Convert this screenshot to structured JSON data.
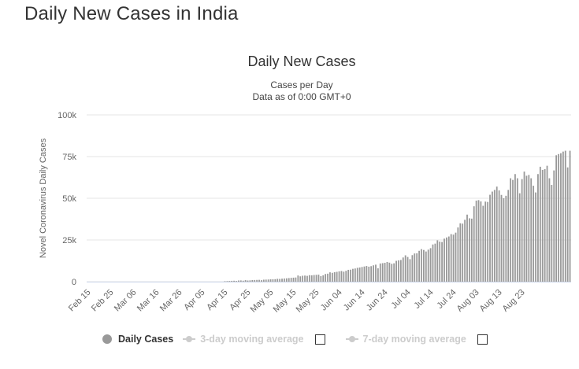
{
  "page": {
    "title": "Daily New Cases in India"
  },
  "chart_data": {
    "type": "bar",
    "title": "Daily New Cases",
    "subtitle": [
      "Cases per Day",
      "Data as of 0:00 GMT+0"
    ],
    "ylabel": "Novel Coronavirus Daily Cases",
    "xlabel": "",
    "ylim": [
      0,
      100000
    ],
    "yticks": [
      0,
      25000,
      50000,
      75000,
      100000
    ],
    "ytick_labels": [
      "0",
      "25k",
      "50k",
      "75k",
      "100k"
    ],
    "xtick_labels": [
      "Feb 15",
      "Feb 25",
      "Mar 06",
      "Mar 16",
      "Mar 26",
      "Apr 05",
      "Apr 15",
      "Apr 25",
      "May 05",
      "May 15",
      "May 25",
      "Jun 04",
      "Jun 14",
      "Jun 24",
      "Jul 04",
      "Jul 14",
      "Jul 24",
      "Aug 03",
      "Aug 13",
      "Aug 23"
    ],
    "grid": true,
    "bar_color": "#999999",
    "series": [
      {
        "name": "Daily Cases",
        "start_date": "Feb 15",
        "values": [
          0,
          0,
          0,
          0,
          0,
          0,
          0,
          0,
          0,
          0,
          0,
          0,
          0,
          0,
          0,
          0,
          0,
          0,
          0,
          0,
          0,
          0,
          0,
          0,
          0,
          0,
          0,
          0,
          0,
          0,
          0,
          0,
          0,
          0,
          0,
          0,
          0,
          0,
          0,
          0,
          0,
          0,
          0,
          0,
          0,
          0,
          0,
          0,
          0,
          0,
          0,
          0,
          0,
          0,
          0,
          0,
          0,
          0,
          0,
          0,
          300,
          350,
          400,
          500,
          550,
          450,
          700,
          750,
          600,
          900,
          700,
          800,
          950,
          1000,
          1050,
          1100,
          900,
          1200,
          1250,
          1300,
          1400,
          1450,
          1500,
          1700,
          1650,
          1800,
          1900,
          2000,
          2150,
          2300,
          2400,
          2500,
          3700,
          3200,
          3550,
          3650,
          3500,
          3900,
          3800,
          4000,
          4100,
          4200,
          3300,
          3800,
          4600,
          4800,
          5600,
          5300,
          5700,
          5900,
          6200,
          6400,
          6000,
          6500,
          7100,
          7200,
          7700,
          7900,
          8300,
          8500,
          8800,
          9100,
          9400,
          9000,
          9300,
          9800,
          10200,
          8000,
          10900,
          11100,
          11300,
          11800,
          11400,
          10700,
          11000,
          12500,
          12800,
          13000,
          14500,
          15800,
          14800,
          13500,
          15900,
          16900,
          17000,
          18500,
          19500,
          19000,
          18100,
          19200,
          20100,
          22300,
          22800,
          24800,
          24000,
          23800,
          25800,
          26500,
          27100,
          28500,
          28200,
          29400,
          32500,
          35000,
          34800,
          37100,
          40200,
          38000,
          37800,
          45200,
          48600,
          48900,
          48100,
          45500,
          48000,
          47800,
          52100,
          54000,
          55000,
          57000,
          54700,
          52000,
          50000,
          51500,
          55000,
          62000,
          61000,
          64500,
          62000,
          53000,
          61500,
          66000,
          63500,
          64000,
          62000,
          57500,
          53500,
          64500,
          68900,
          67000,
          67500,
          69500,
          62000,
          58000,
          66700,
          75800,
          76500,
          77000,
          78000,
          78500,
          68500,
          78500
        ]
      },
      {
        "name": "3-day moving average",
        "visible": false
      },
      {
        "name": "7-day moving average",
        "visible": false
      }
    ],
    "legend": {
      "placement": "bottom",
      "items": [
        {
          "label": "Daily Cases",
          "active": true
        },
        {
          "label": "3-day moving average",
          "active": false
        },
        {
          "label": "7-day moving average",
          "active": false
        }
      ]
    }
  }
}
